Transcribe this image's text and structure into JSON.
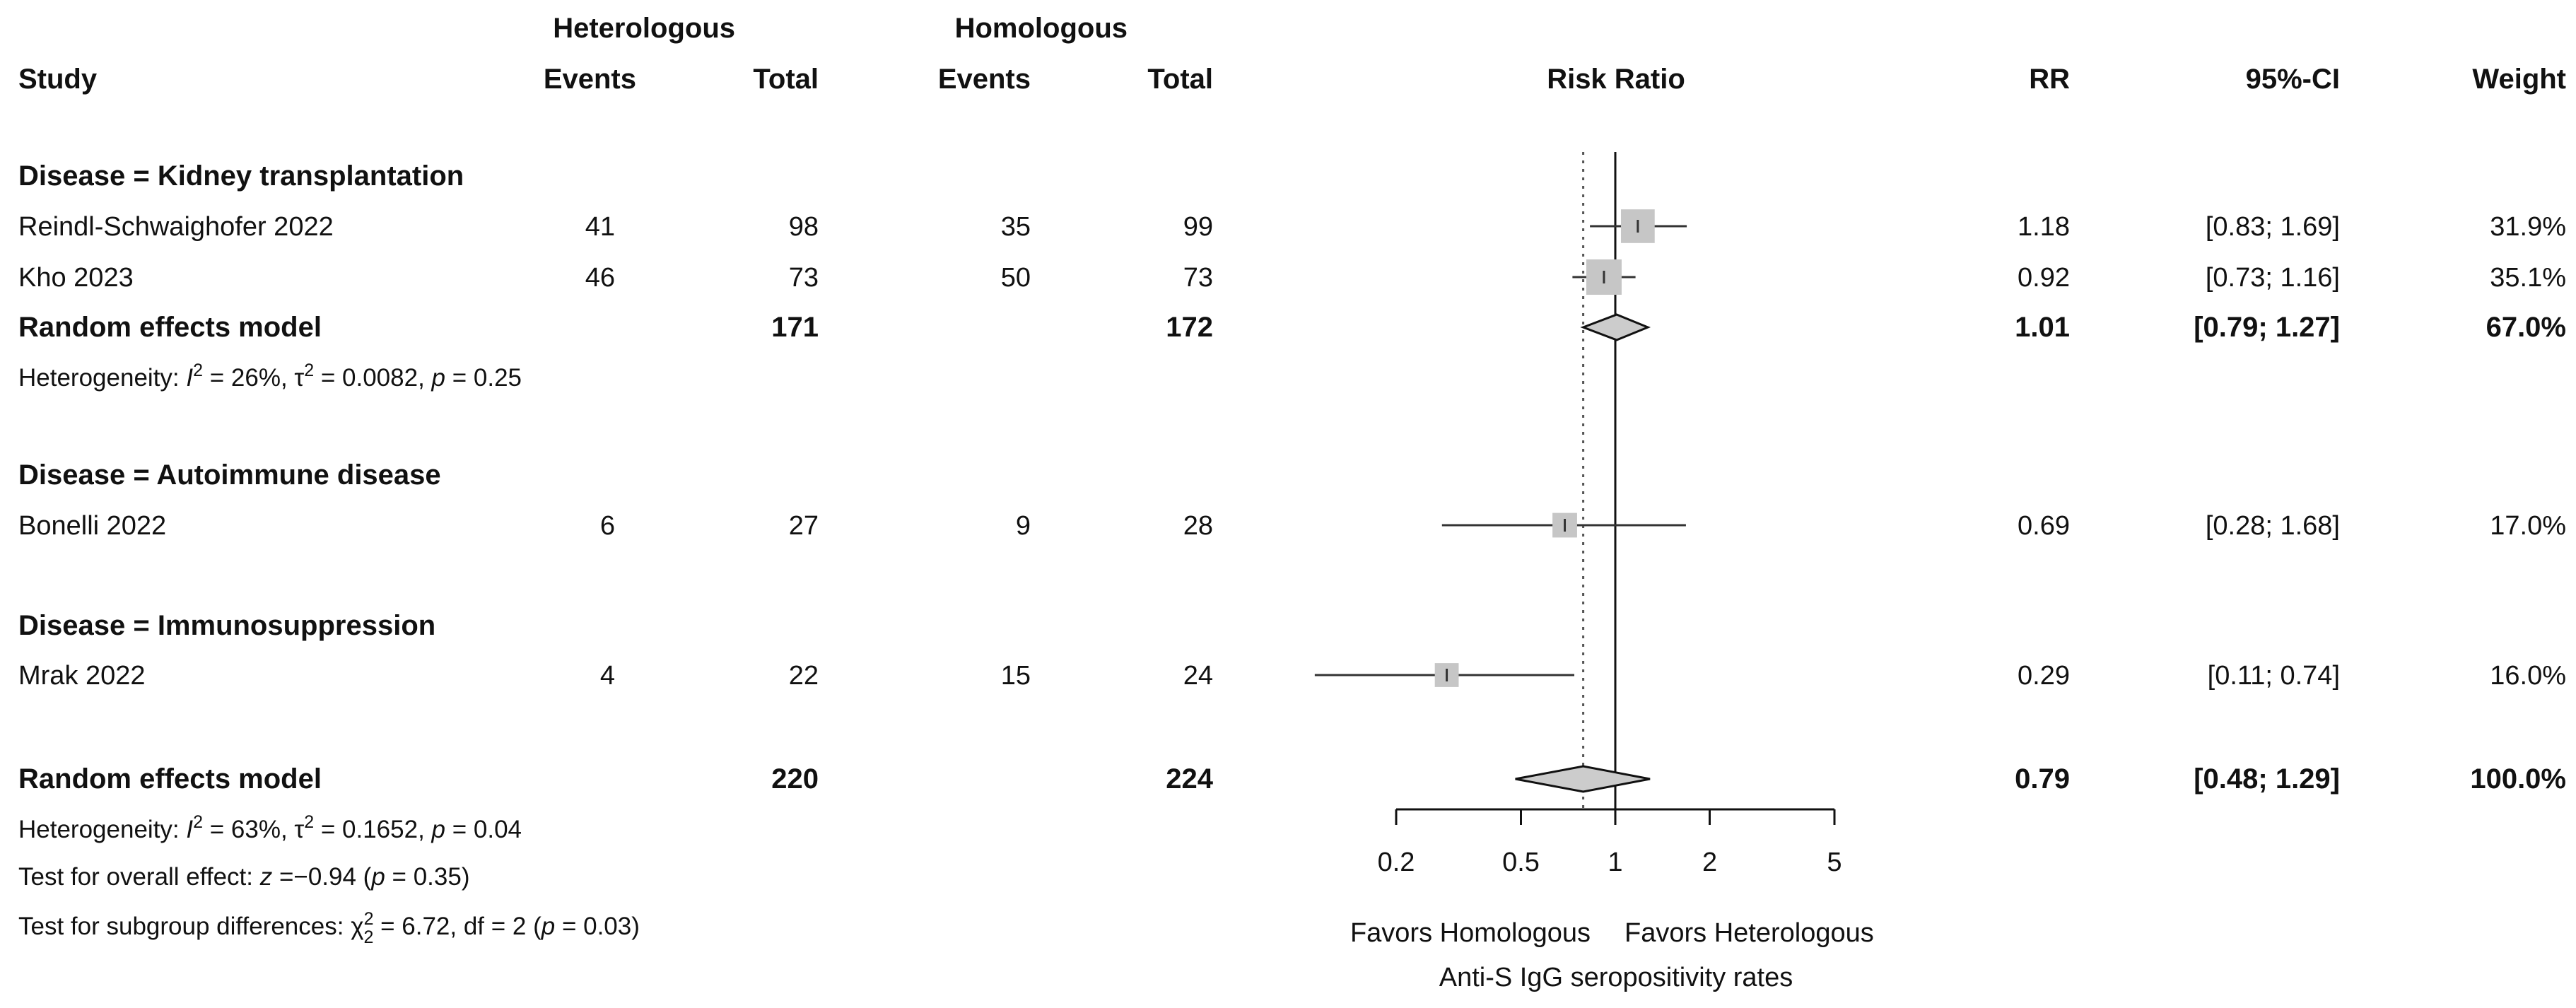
{
  "chart_data": {
    "type": "forest",
    "title": "Risk Ratio",
    "measure": "RR",
    "scale": "log",
    "x_ticks": [
      0.2,
      0.5,
      1,
      2,
      5
    ],
    "x_tick_labels": [
      "0.2",
      "0.5",
      "1",
      "2",
      "5"
    ],
    "xlim": [
      0.2,
      5
    ],
    "null_line": 1,
    "overall_estimate_line": 0.79,
    "favors_left": "Favors Homologous",
    "favors_right": "Favors Heterologous",
    "xlabel": "Anti-S IgG seropositivity rates",
    "headers": {
      "group1": "Heterologous",
      "group2": "Homologous",
      "study": "Study",
      "events1": "Events",
      "total1": "Total",
      "events2": "Events",
      "total2": "Total",
      "plot": "Risk Ratio",
      "rr": "RR",
      "ci": "95%-CI",
      "weight": "Weight"
    },
    "subgroups": [
      {
        "label": "Disease = Kidney transplantation",
        "studies": [
          {
            "name": "Reindl-Schwaighofer 2022",
            "events1": "41",
            "total1": "98",
            "events2": "35",
            "total2": "99",
            "rr": 1.18,
            "lower": 0.83,
            "upper": 1.69,
            "rr_text": "1.18",
            "ci_text": "[0.83; 1.69]",
            "weight_text": "31.9%",
            "weight": 31.9
          },
          {
            "name": "Kho 2023",
            "events1": "46",
            "total1": "73",
            "events2": "50",
            "total2": "73",
            "rr": 0.92,
            "lower": 0.73,
            "upper": 1.16,
            "rr_text": "0.92",
            "ci_text": "[0.73; 1.16]",
            "weight_text": "35.1%",
            "weight": 35.1
          }
        ],
        "summary": {
          "label": "Random effects model",
          "total1": "171",
          "total2": "172",
          "rr": 1.01,
          "lower": 0.79,
          "upper": 1.27,
          "rr_text": "1.01",
          "ci_text": "[0.79; 1.27]",
          "weight_text": "67.0%"
        },
        "heterogeneity": {
          "prefix": "Heterogeneity: ",
          "i2_sym": "I",
          "i2_exp": "2",
          "i2_val": " = 26%, τ",
          "tau_exp": "2",
          "tau_val": " = 0.0082, ",
          "p_sym": "p",
          "p_val": " = 0.25"
        }
      },
      {
        "label": "Disease = Autoimmune disease",
        "studies": [
          {
            "name": "Bonelli 2022",
            "events1": "6",
            "total1": "27",
            "events2": "9",
            "total2": "28",
            "rr": 0.69,
            "lower": 0.28,
            "upper": 1.68,
            "rr_text": "0.69",
            "ci_text": "[0.28; 1.68]",
            "weight_text": "17.0%",
            "weight": 17.0
          }
        ]
      },
      {
        "label": "Disease = Immunosuppression",
        "studies": [
          {
            "name": "Mrak 2022",
            "events1": "4",
            "total1": "22",
            "events2": "15",
            "total2": "24",
            "rr": 0.29,
            "lower": 0.11,
            "upper": 0.74,
            "rr_text": "0.29",
            "ci_text": "[0.11; 0.74]",
            "weight_text": "16.0%",
            "weight": 16.0
          }
        ]
      }
    ],
    "overall": {
      "label": "Random effects model",
      "total1": "220",
      "total2": "224",
      "rr": 0.79,
      "lower": 0.48,
      "upper": 1.29,
      "rr_text": "0.79",
      "ci_text": "[0.48; 1.29]",
      "weight_text": "100.0%",
      "heterogeneity": {
        "prefix": "Heterogeneity: ",
        "i2_sym": "I",
        "i2_exp": "2",
        "i2_val": " = 63%, τ",
        "tau_exp": "2",
        "tau_val": " = 0.1652, ",
        "p_sym": "p",
        "p_val": " = 0.04"
      },
      "overall_effect": {
        "prefix": "Test for overall effect: ",
        "z_sym": "z",
        "z_val": " =−0.94 (",
        "p_sym": "p",
        "p_val": " = 0.35)"
      },
      "subgroup_test": {
        "prefix": "Test for subgroup differences: ",
        "chi": "χ",
        "chi_sup": "2",
        "chi_sub": "2",
        "chi_val": " = 6.72, df = 2 (",
        "p_sym": "p",
        "p_val": " = 0.03)"
      }
    }
  }
}
